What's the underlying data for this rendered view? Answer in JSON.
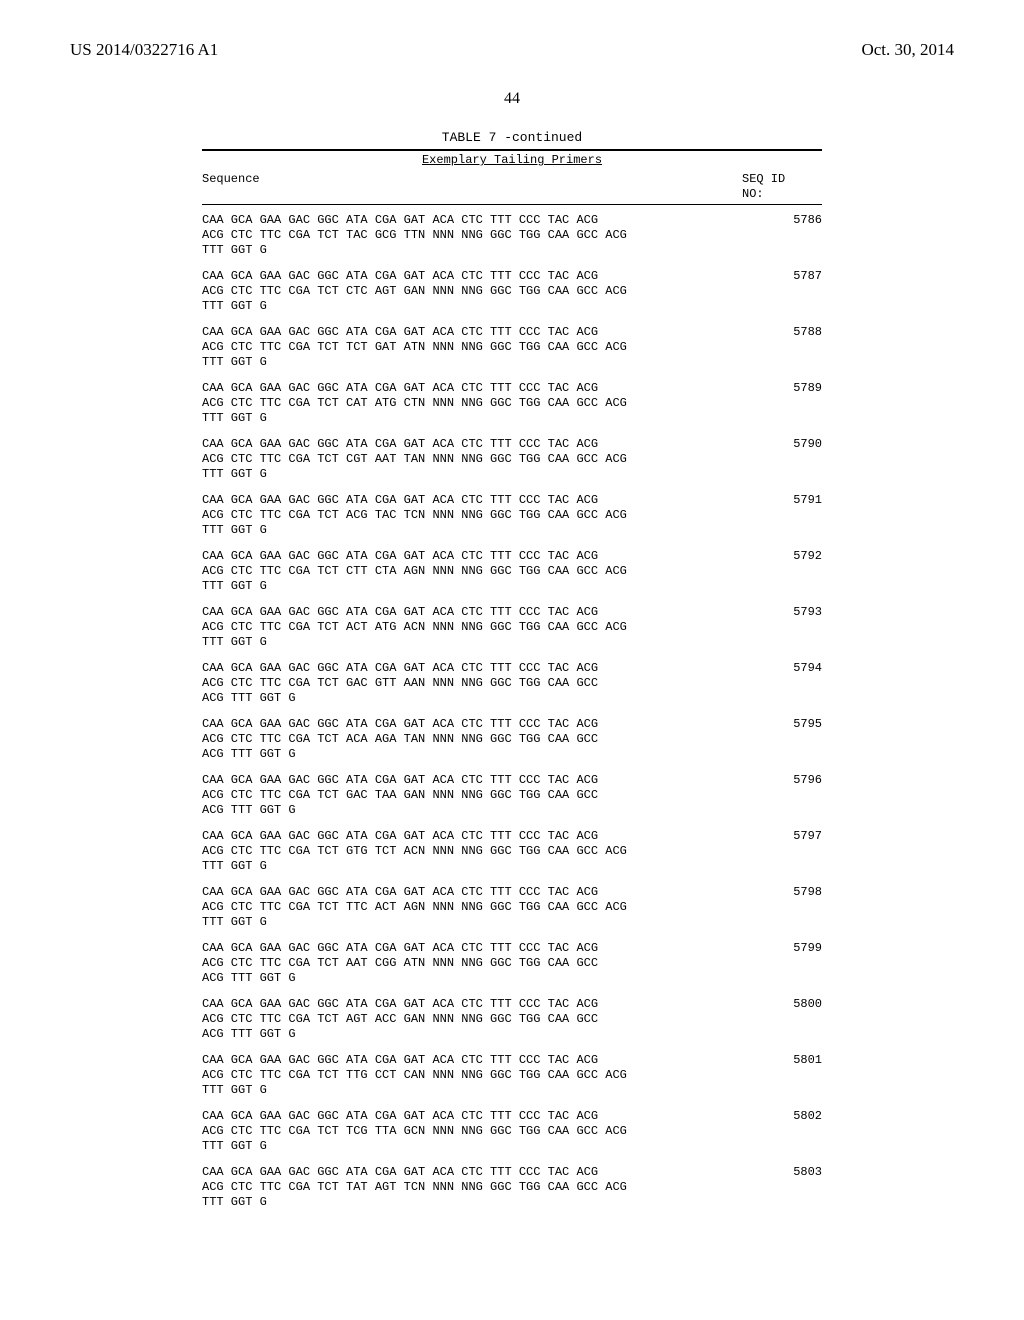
{
  "header": {
    "left": "US 2014/0322716 A1",
    "right": "Oct. 30, 2014"
  },
  "page_number": "44",
  "table_caption": "TABLE 7 -continued",
  "subtitle": "Exemplary Tailing Primers",
  "col_headers": {
    "left": "Sequence",
    "right_top": "SEQ ID",
    "right_bottom": "NO:"
  },
  "entries": [
    {
      "id": "5786",
      "lines": [
        "CAA GCA GAA GAC GGC ATA CGA GAT ACA CTC TTT CCC TAC ACG",
        "ACG CTC TTC CGA TCT TAC GCG TTN NNN NNG GGC TGG CAA GCC ACG",
        "TTT GGT G"
      ]
    },
    {
      "id": "5787",
      "lines": [
        "CAA GCA GAA GAC GGC ATA CGA GAT ACA CTC TTT CCC TAC ACG",
        "ACG CTC TTC CGA TCT CTC AGT GAN NNN NNG GGC TGG CAA GCC ACG",
        "TTT GGT G"
      ]
    },
    {
      "id": "5788",
      "lines": [
        "CAA GCA GAA GAC GGC ATA CGA GAT ACA CTC TTT CCC TAC ACG",
        "ACG CTC TTC CGA TCT TCT GAT ATN NNN NNG GGC TGG CAA GCC ACG",
        "TTT GGT G"
      ]
    },
    {
      "id": "5789",
      "lines": [
        "CAA GCA GAA GAC GGC ATA CGA GAT ACA CTC TTT CCC TAC ACG",
        "ACG CTC TTC CGA TCT CAT ATG CTN NNN NNG GGC TGG CAA GCC ACG",
        "TTT GGT G"
      ]
    },
    {
      "id": "5790",
      "lines": [
        "CAA GCA GAA GAC GGC ATA CGA GAT ACA CTC TTT CCC TAC ACG",
        "ACG CTC TTC CGA TCT CGT AAT TAN NNN NNG GGC TGG CAA GCC ACG",
        "TTT GGT G"
      ]
    },
    {
      "id": "5791",
      "lines": [
        "CAA GCA GAA GAC GGC ATA CGA GAT ACA CTC TTT CCC TAC ACG",
        "ACG CTC TTC CGA TCT ACG TAC TCN NNN NNG GGC TGG CAA GCC ACG",
        "TTT GGT G"
      ]
    },
    {
      "id": "5792",
      "lines": [
        "CAA GCA GAA GAC GGC ATA CGA GAT ACA CTC TTT CCC TAC ACG",
        "ACG CTC TTC CGA TCT CTT CTA AGN NNN NNG GGC TGG CAA GCC ACG",
        "TTT GGT G"
      ]
    },
    {
      "id": "5793",
      "lines": [
        "CAA GCA GAA GAC GGC ATA CGA GAT ACA CTC TTT CCC TAC ACG",
        "ACG CTC TTC CGA TCT ACT ATG ACN NNN NNG GGC TGG CAA GCC ACG",
        "TTT GGT G"
      ]
    },
    {
      "id": "5794",
      "lines": [
        "CAA GCA GAA GAC GGC ATA CGA GAT ACA CTC TTT CCC TAC ACG",
        "ACG CTC TTC CGA TCT GAC GTT AAN NNN NNG GGC TGG CAA GCC",
        "ACG TTT GGT G"
      ]
    },
    {
      "id": "5795",
      "lines": [
        "CAA GCA GAA GAC GGC ATA CGA GAT ACA CTC TTT CCC TAC ACG",
        "ACG CTC TTC CGA TCT ACA AGA TAN NNN NNG GGC TGG CAA GCC",
        "ACG TTT GGT G"
      ]
    },
    {
      "id": "5796",
      "lines": [
        "CAA GCA GAA GAC GGC ATA CGA GAT ACA CTC TTT CCC TAC ACG",
        "ACG CTC TTC CGA TCT GAC TAA GAN NNN NNG GGC TGG CAA GCC",
        "ACG TTT GGT G"
      ]
    },
    {
      "id": "5797",
      "lines": [
        "CAA GCA GAA GAC GGC ATA CGA GAT ACA CTC TTT CCC TAC ACG",
        "ACG CTC TTC CGA TCT GTG TCT ACN NNN NNG GGC TGG CAA GCC ACG",
        "TTT GGT G"
      ]
    },
    {
      "id": "5798",
      "lines": [
        "CAA GCA GAA GAC GGC ATA CGA GAT ACA CTC TTT CCC TAC ACG",
        "ACG CTC TTC CGA TCT TTC ACT AGN NNN NNG GGC TGG CAA GCC ACG",
        "TTT GGT G"
      ]
    },
    {
      "id": "5799",
      "lines": [
        "CAA GCA GAA GAC GGC ATA CGA GAT ACA CTC TTT CCC TAC ACG",
        "ACG CTC TTC CGA TCT AAT CGG ATN NNN NNG GGC TGG CAA GCC",
        "ACG TTT GGT G"
      ]
    },
    {
      "id": "5800",
      "lines": [
        "CAA GCA GAA GAC GGC ATA CGA GAT ACA CTC TTT CCC TAC ACG",
        "ACG CTC TTC CGA TCT AGT ACC GAN NNN NNG GGC TGG CAA GCC",
        "ACG TTT GGT G"
      ]
    },
    {
      "id": "5801",
      "lines": [
        "CAA GCA GAA GAC GGC ATA CGA GAT ACA CTC TTT CCC TAC ACG",
        "ACG CTC TTC CGA TCT TTG CCT CAN NNN NNG GGC TGG CAA GCC ACG",
        "TTT GGT G"
      ]
    },
    {
      "id": "5802",
      "lines": [
        "CAA GCA GAA GAC GGC ATA CGA GAT ACA CTC TTT CCC TAC ACG",
        "ACG CTC TTC CGA TCT TCG TTA GCN NNN NNG GGC TGG CAA GCC ACG",
        "TTT GGT G"
      ]
    },
    {
      "id": "5803",
      "lines": [
        "CAA GCA GAA GAC GGC ATA CGA GAT ACA CTC TTT CCC TAC ACG",
        "ACG CTC TTC CGA TCT TAT AGT TCN NNN NNG GGC TGG CAA GCC ACG",
        "TTT GGT G"
      ]
    }
  ]
}
